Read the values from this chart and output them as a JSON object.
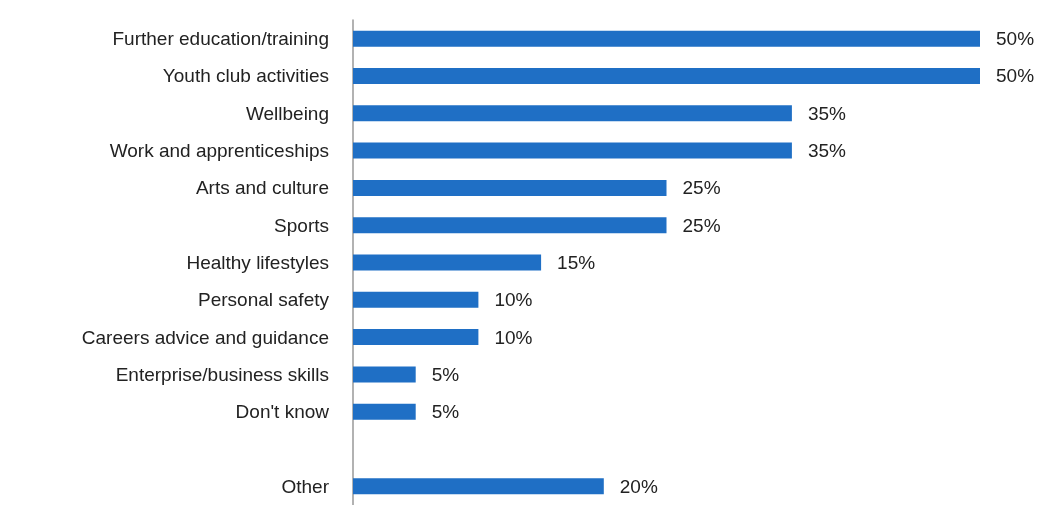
{
  "chart_data": {
    "type": "bar",
    "orientation": "horizontal",
    "categories": [
      "Further education/training",
      "Youth club activities",
      "Wellbeing",
      "Work and apprenticeships",
      "Arts and culture",
      "Sports",
      "Healthy lifestyles",
      "Personal safety",
      "Careers advice and guidance",
      "Enterprise/business skills",
      "Don't know",
      null,
      "Other"
    ],
    "values": [
      50,
      50,
      35,
      35,
      25,
      25,
      15,
      10,
      10,
      5,
      5,
      null,
      20
    ],
    "value_labels": [
      "50%",
      "50%",
      "35%",
      "35%",
      "25%",
      "25%",
      "15%",
      "10%",
      "10%",
      "5%",
      "5%",
      null,
      "20%"
    ],
    "color": "#1f6fc5"
  }
}
